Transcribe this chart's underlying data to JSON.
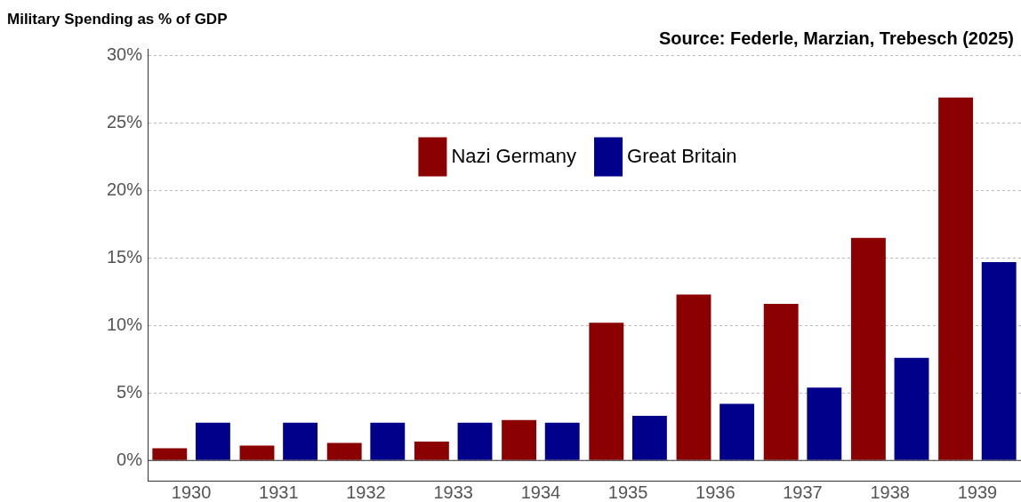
{
  "chart_data": {
    "type": "bar",
    "ylabel": "Military Spending as % of GDP",
    "annotations": [
      "Source: Federle, Marzian, Trebesch (2025)"
    ],
    "categories": [
      "1930",
      "1931",
      "1932",
      "1933",
      "1934",
      "1935",
      "1936",
      "1937",
      "1938",
      "1939"
    ],
    "series": [
      {
        "name": "Nazi Germany",
        "color": "#8b0000",
        "values": [
          0.9,
          1.1,
          1.3,
          1.4,
          3.0,
          10.2,
          12.3,
          11.6,
          16.5,
          26.9
        ]
      },
      {
        "name": "Great Britain",
        "color": "#00008b",
        "values": [
          2.8,
          2.8,
          2.8,
          2.8,
          2.8,
          3.3,
          4.2,
          5.4,
          7.6,
          14.7
        ]
      }
    ],
    "ylim": [
      -1.5,
      30.5
    ],
    "yticks": [
      {
        "value": 0,
        "label": "0%"
      },
      {
        "value": 5,
        "label": "5%"
      },
      {
        "value": 10,
        "label": "10%"
      },
      {
        "value": 15,
        "label": "15%"
      },
      {
        "value": 20,
        "label": "20%"
      },
      {
        "value": 25,
        "label": "25%"
      },
      {
        "value": 30,
        "label": "30%"
      }
    ],
    "ref_lines": [
      {
        "axis": "y",
        "value": 0,
        "color": "#333333"
      }
    ],
    "grid": "y",
    "legend": "top"
  }
}
